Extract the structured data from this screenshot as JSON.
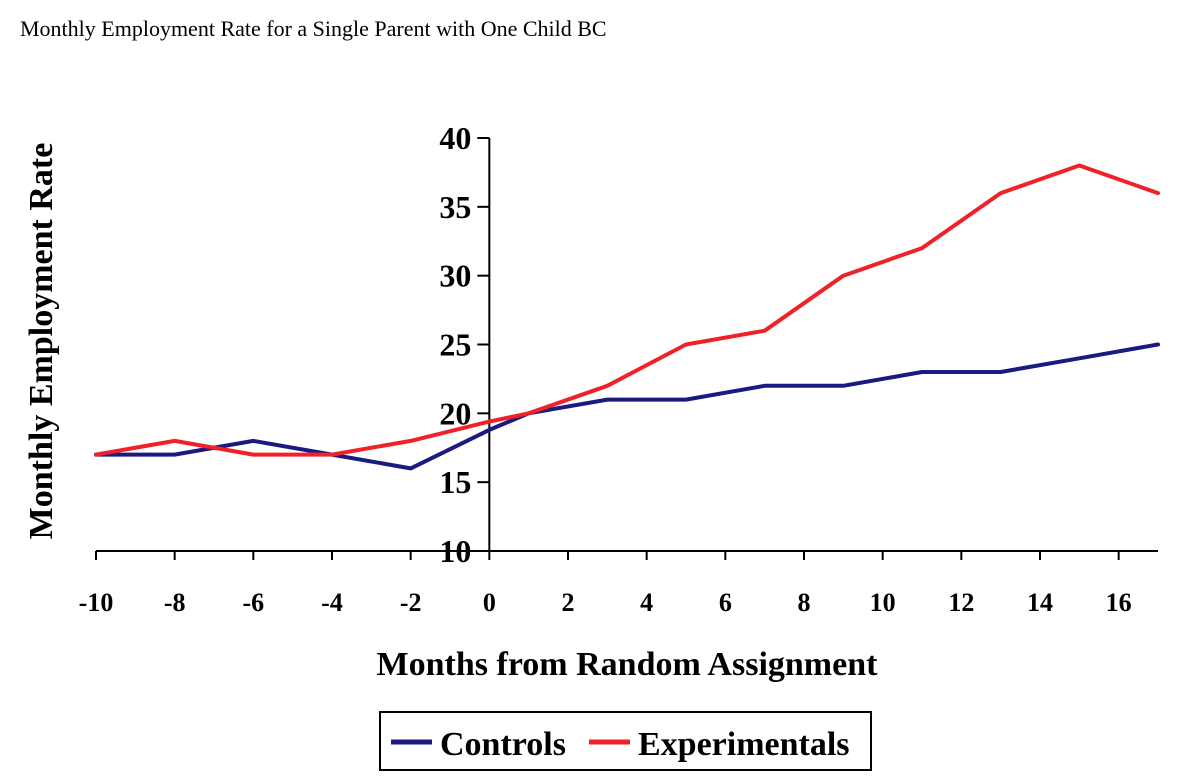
{
  "page_title": "Monthly Employment Rate for a Single Parent with One Child BC",
  "chart_data": {
    "type": "line",
    "title": "Monthly Employment Rate for a Single Parent with One Child BC",
    "xlabel": "Months from Random Assignment",
    "ylabel": "Monthly Employment Rate",
    "xlim": [
      -10,
      17
    ],
    "ylim": [
      10,
      40
    ],
    "x_ticks": [
      -10,
      -8,
      -6,
      -4,
      -2,
      0,
      2,
      4,
      6,
      8,
      10,
      12,
      14,
      16
    ],
    "x_tick_labels": [
      "-10",
      "-8",
      "-6",
      "-4",
      "-2",
      "0",
      "2",
      "4",
      "6",
      "8",
      "10",
      "12",
      "14",
      "16"
    ],
    "y_ticks": [
      10,
      15,
      20,
      25,
      30,
      35,
      40
    ],
    "y_tick_labels": [
      "10",
      "15",
      "20",
      "25",
      "30",
      "35",
      "40"
    ],
    "y_axis_crosses_at_x": 0,
    "grid": false,
    "legend_position": "bottom-center",
    "series": [
      {
        "name": "Controls",
        "color": "#1a1a80",
        "x": [
          -10,
          -8,
          -6,
          -4,
          -2,
          0,
          1,
          3,
          5,
          7,
          9,
          11,
          13,
          15,
          17
        ],
        "y": [
          17,
          17,
          18,
          17,
          16,
          18.8,
          20,
          21,
          21,
          22,
          22,
          23,
          23,
          24,
          25
        ]
      },
      {
        "name": "Experimentals",
        "color": "#ee2228",
        "x": [
          -10,
          -8,
          -6,
          -4,
          -2,
          0,
          1,
          3,
          5,
          7,
          9,
          11,
          13,
          15,
          17
        ],
        "y": [
          17,
          18,
          17,
          17,
          18,
          19.4,
          20,
          22,
          25,
          26,
          30,
          32,
          36,
          38,
          36
        ]
      }
    ]
  }
}
